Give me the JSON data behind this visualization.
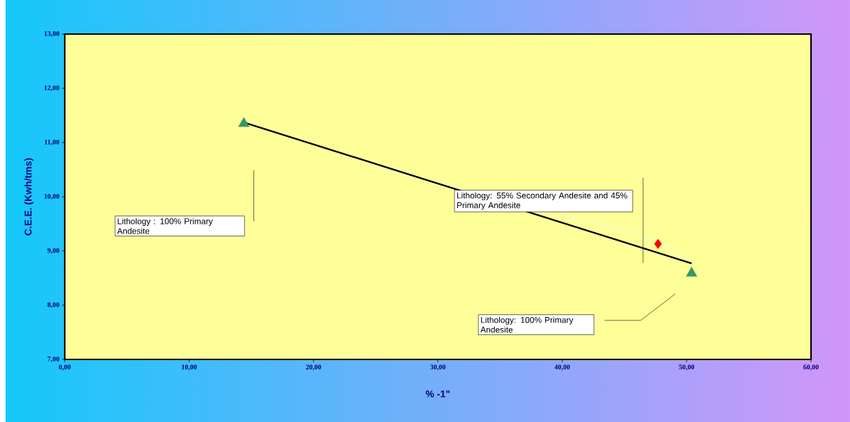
{
  "chart_data": {
    "type": "scatter",
    "xlabel": "% -1\"",
    "ylabel": "C.E.E. (Kwh/tms)",
    "xlim": [
      0,
      60
    ],
    "ylim": [
      7,
      13
    ],
    "xticks": [
      {
        "value": 0,
        "label": "0,00"
      },
      {
        "value": 10,
        "label": "10,00"
      },
      {
        "value": 20,
        "label": "20,00"
      },
      {
        "value": 30,
        "label": "30,00"
      },
      {
        "value": 40,
        "label": "40,00"
      },
      {
        "value": 50,
        "label": "50,00"
      },
      {
        "value": 60,
        "label": "60,00"
      }
    ],
    "yticks": [
      {
        "value": 7,
        "label": "7,00"
      },
      {
        "value": 8,
        "label": "8,00"
      },
      {
        "value": 9,
        "label": "9,00"
      },
      {
        "value": 10,
        "label": "10,00"
      },
      {
        "value": 11,
        "label": "11,00"
      },
      {
        "value": 12,
        "label": "12,00"
      },
      {
        "value": 13,
        "label": "13,00"
      }
    ],
    "series": [
      {
        "type": "line",
        "color": "#ccffff",
        "marker": "none",
        "x": [
          25,
          40,
          47.7,
          50.4
        ],
        "values": [
          10.55,
          9.67,
          9.2,
          8.77
        ]
      },
      {
        "type": "line",
        "color": "#000000",
        "marker": "none",
        "x": [
          14.4,
          50.4
        ],
        "values": [
          11.37,
          8.77
        ]
      },
      {
        "color": "#339966",
        "marker": "triangle",
        "x": [
          14.4,
          50.4
        ],
        "values": [
          11.35,
          8.59
        ]
      },
      {
        "color": "#ff0000",
        "marker": "diamond",
        "x": [
          47.7
        ],
        "values": [
          9.13
        ]
      }
    ],
    "annotations": [
      "Lithology : 100% Primary Andesite",
      "Lithology: 55% Secondary Andesite and 45% Primary Andesite",
      "Lithology: 100% Primary Andesite"
    ]
  }
}
